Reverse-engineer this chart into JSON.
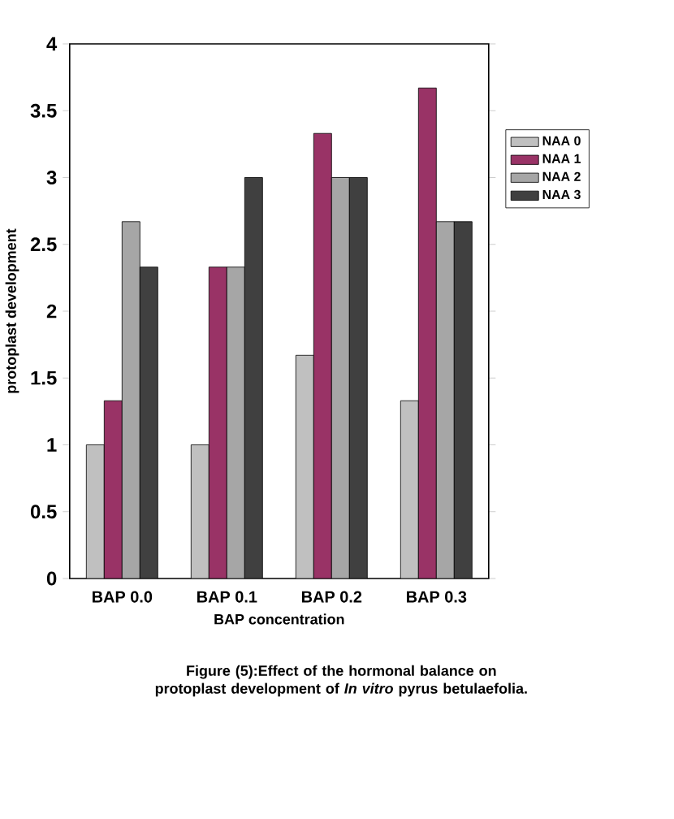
{
  "chart_data": {
    "type": "bar",
    "xlabel": "BAP concentration",
    "ylabel": "protoplast development",
    "categories": [
      "BAP 0.0",
      "BAP 0.1",
      "BAP 0.2",
      "BAP 0.3"
    ],
    "series": [
      {
        "name": "NAA 0",
        "color": "#c0c0c0",
        "values": [
          1,
          1,
          1.67,
          1.33
        ]
      },
      {
        "name": "NAA 1",
        "color": "#993366",
        "values": [
          1.33,
          2.33,
          3.33,
          3.67
        ]
      },
      {
        "name": "NAA 2",
        "color": "#a6a6a6",
        "values": [
          2.67,
          2.33,
          3,
          2.67
        ]
      },
      {
        "name": "NAA 3",
        "color": "#404040",
        "values": [
          2.33,
          3,
          3,
          2.67
        ]
      }
    ],
    "ylim": [
      0,
      4
    ],
    "yticks": [
      0,
      0.5,
      1,
      1.5,
      2,
      2.5,
      3,
      3.5,
      4
    ],
    "legend": "right",
    "grid": false,
    "annotations": [
      "Figure (5):Effect of the hormonal balance on protoplast development of *In vitro* pyrus betulaefolia."
    ]
  }
}
